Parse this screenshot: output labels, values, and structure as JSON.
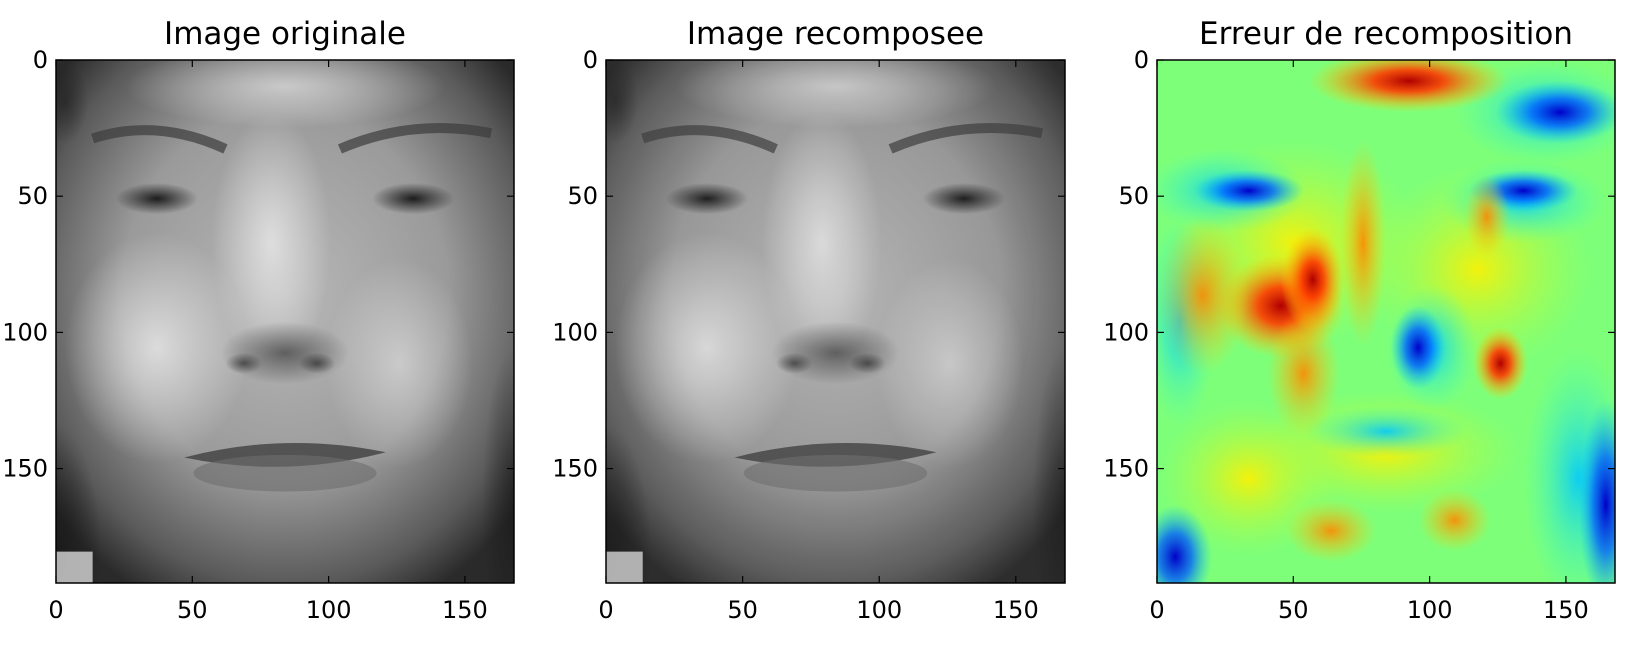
{
  "chart_data": [
    {
      "type": "heatmap",
      "title": "Image originale",
      "colormap": "gray",
      "xlim": [
        0,
        168
      ],
      "ylim": [
        192,
        0
      ],
      "xticks": [
        0,
        50,
        100,
        150
      ],
      "yticks": [
        0,
        50,
        100,
        150
      ],
      "x_tick_labels": [
        "0",
        "50",
        "100",
        "150"
      ],
      "y_tick_labels": [
        "0",
        "50",
        "100",
        "150"
      ]
    },
    {
      "type": "heatmap",
      "title": "Image recomposee",
      "colormap": "gray",
      "xlim": [
        0,
        168
      ],
      "ylim": [
        192,
        0
      ],
      "xticks": [
        0,
        50,
        100,
        150
      ],
      "yticks": [
        0,
        50,
        100,
        150
      ],
      "x_tick_labels": [
        "0",
        "50",
        "100",
        "150"
      ],
      "y_tick_labels": [
        "0",
        "50",
        "100",
        "150"
      ]
    },
    {
      "type": "heatmap",
      "title": "Erreur de recomposition",
      "colormap": "jet",
      "xlim": [
        0,
        168
      ],
      "ylim": [
        192,
        0
      ],
      "xticks": [
        0,
        50,
        100,
        150
      ],
      "yticks": [
        0,
        50,
        100,
        150
      ],
      "x_tick_labels": [
        "0",
        "50",
        "100",
        "150"
      ],
      "y_tick_labels": [
        "0",
        "50",
        "100",
        "150"
      ]
    }
  ]
}
